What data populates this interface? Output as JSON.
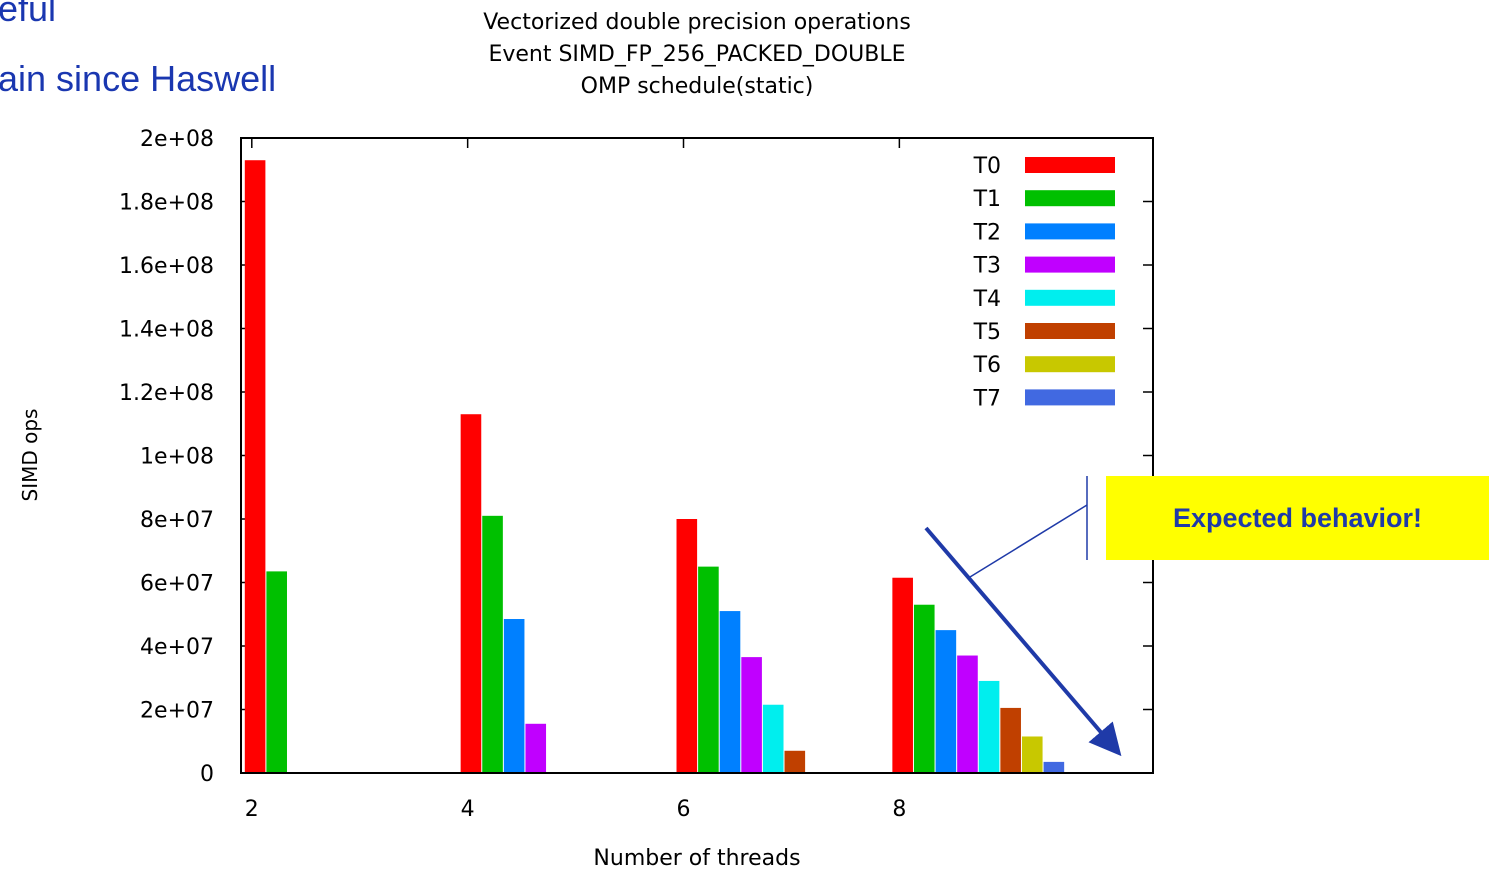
{
  "slide": {
    "line1": "eful",
    "line2": "ain since Haswell"
  },
  "callout": {
    "text": "Expected behavior!",
    "bg": "#ffff00",
    "text_color": "#1f3aa8",
    "arrow_color": "#1f3aa8"
  },
  "chart_data": {
    "type": "bar",
    "title": [
      "Vectorized double precision operations",
      "Event SIMD_FP_256_PACKED_DOUBLE",
      "OMP schedule(static)"
    ],
    "xlabel": "Number of threads",
    "ylabel": "SIMD ops",
    "categories": [
      "2",
      "4",
      "6",
      "8"
    ],
    "ylim": [
      0,
      200000000
    ],
    "yticks": [
      "0",
      "2e+07",
      "4e+07",
      "6e+07",
      "8e+07",
      "1e+08",
      "1.2e+08",
      "1.4e+08",
      "1.6e+08",
      "1.8e+08",
      "2e+08"
    ],
    "legend_position": "top-right",
    "series": [
      {
        "name": "T0",
        "color": "#ff0000",
        "values": [
          193000000,
          113000000,
          80000000,
          61500000
        ]
      },
      {
        "name": "T1",
        "color": "#00c000",
        "values": [
          63500000,
          81000000,
          65000000,
          53000000
        ]
      },
      {
        "name": "T2",
        "color": "#0080ff",
        "values": [
          null,
          48500000,
          51000000,
          45000000
        ]
      },
      {
        "name": "T3",
        "color": "#c000ff",
        "values": [
          null,
          15500000,
          36500000,
          37000000
        ]
      },
      {
        "name": "T4",
        "color": "#00eeee",
        "values": [
          null,
          null,
          21500000,
          29000000
        ]
      },
      {
        "name": "T5",
        "color": "#c04000",
        "values": [
          null,
          null,
          7000000,
          20500000
        ]
      },
      {
        "name": "T6",
        "color": "#c8c800",
        "values": [
          null,
          null,
          null,
          11500000
        ]
      },
      {
        "name": "T7",
        "color": "#4169e1",
        "values": [
          null,
          null,
          null,
          3500000
        ]
      }
    ]
  }
}
